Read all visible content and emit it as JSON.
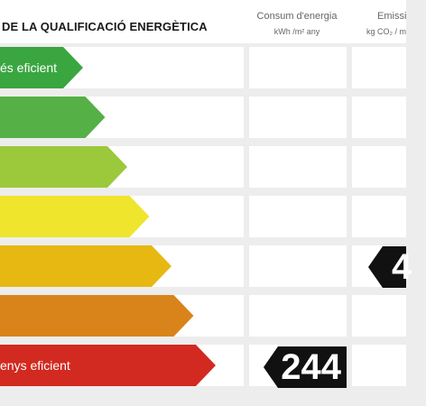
{
  "header": {
    "title": "DE LA QUALIFICACIÓ ENERGÈTICA",
    "col_consum_title": "Consum d'energia",
    "col_consum_unit": "kWh /m² any",
    "col_emissions_title": "Emissi",
    "col_emissions_unit": "kg CO₂ / m"
  },
  "ratings": [
    {
      "label": "és eficient",
      "color": "#3aa640"
    },
    {
      "label": "",
      "color": "#55b045"
    },
    {
      "label": "",
      "color": "#9cc83b"
    },
    {
      "label": "",
      "color": "#efe52c"
    },
    {
      "label": "",
      "color": "#e8b812"
    },
    {
      "label": "",
      "color": "#d9841a"
    },
    {
      "label": "enys eficient",
      "color": "#d22a20"
    }
  ],
  "indicators": {
    "consum_value": "244",
    "emissions_value": "4"
  }
}
